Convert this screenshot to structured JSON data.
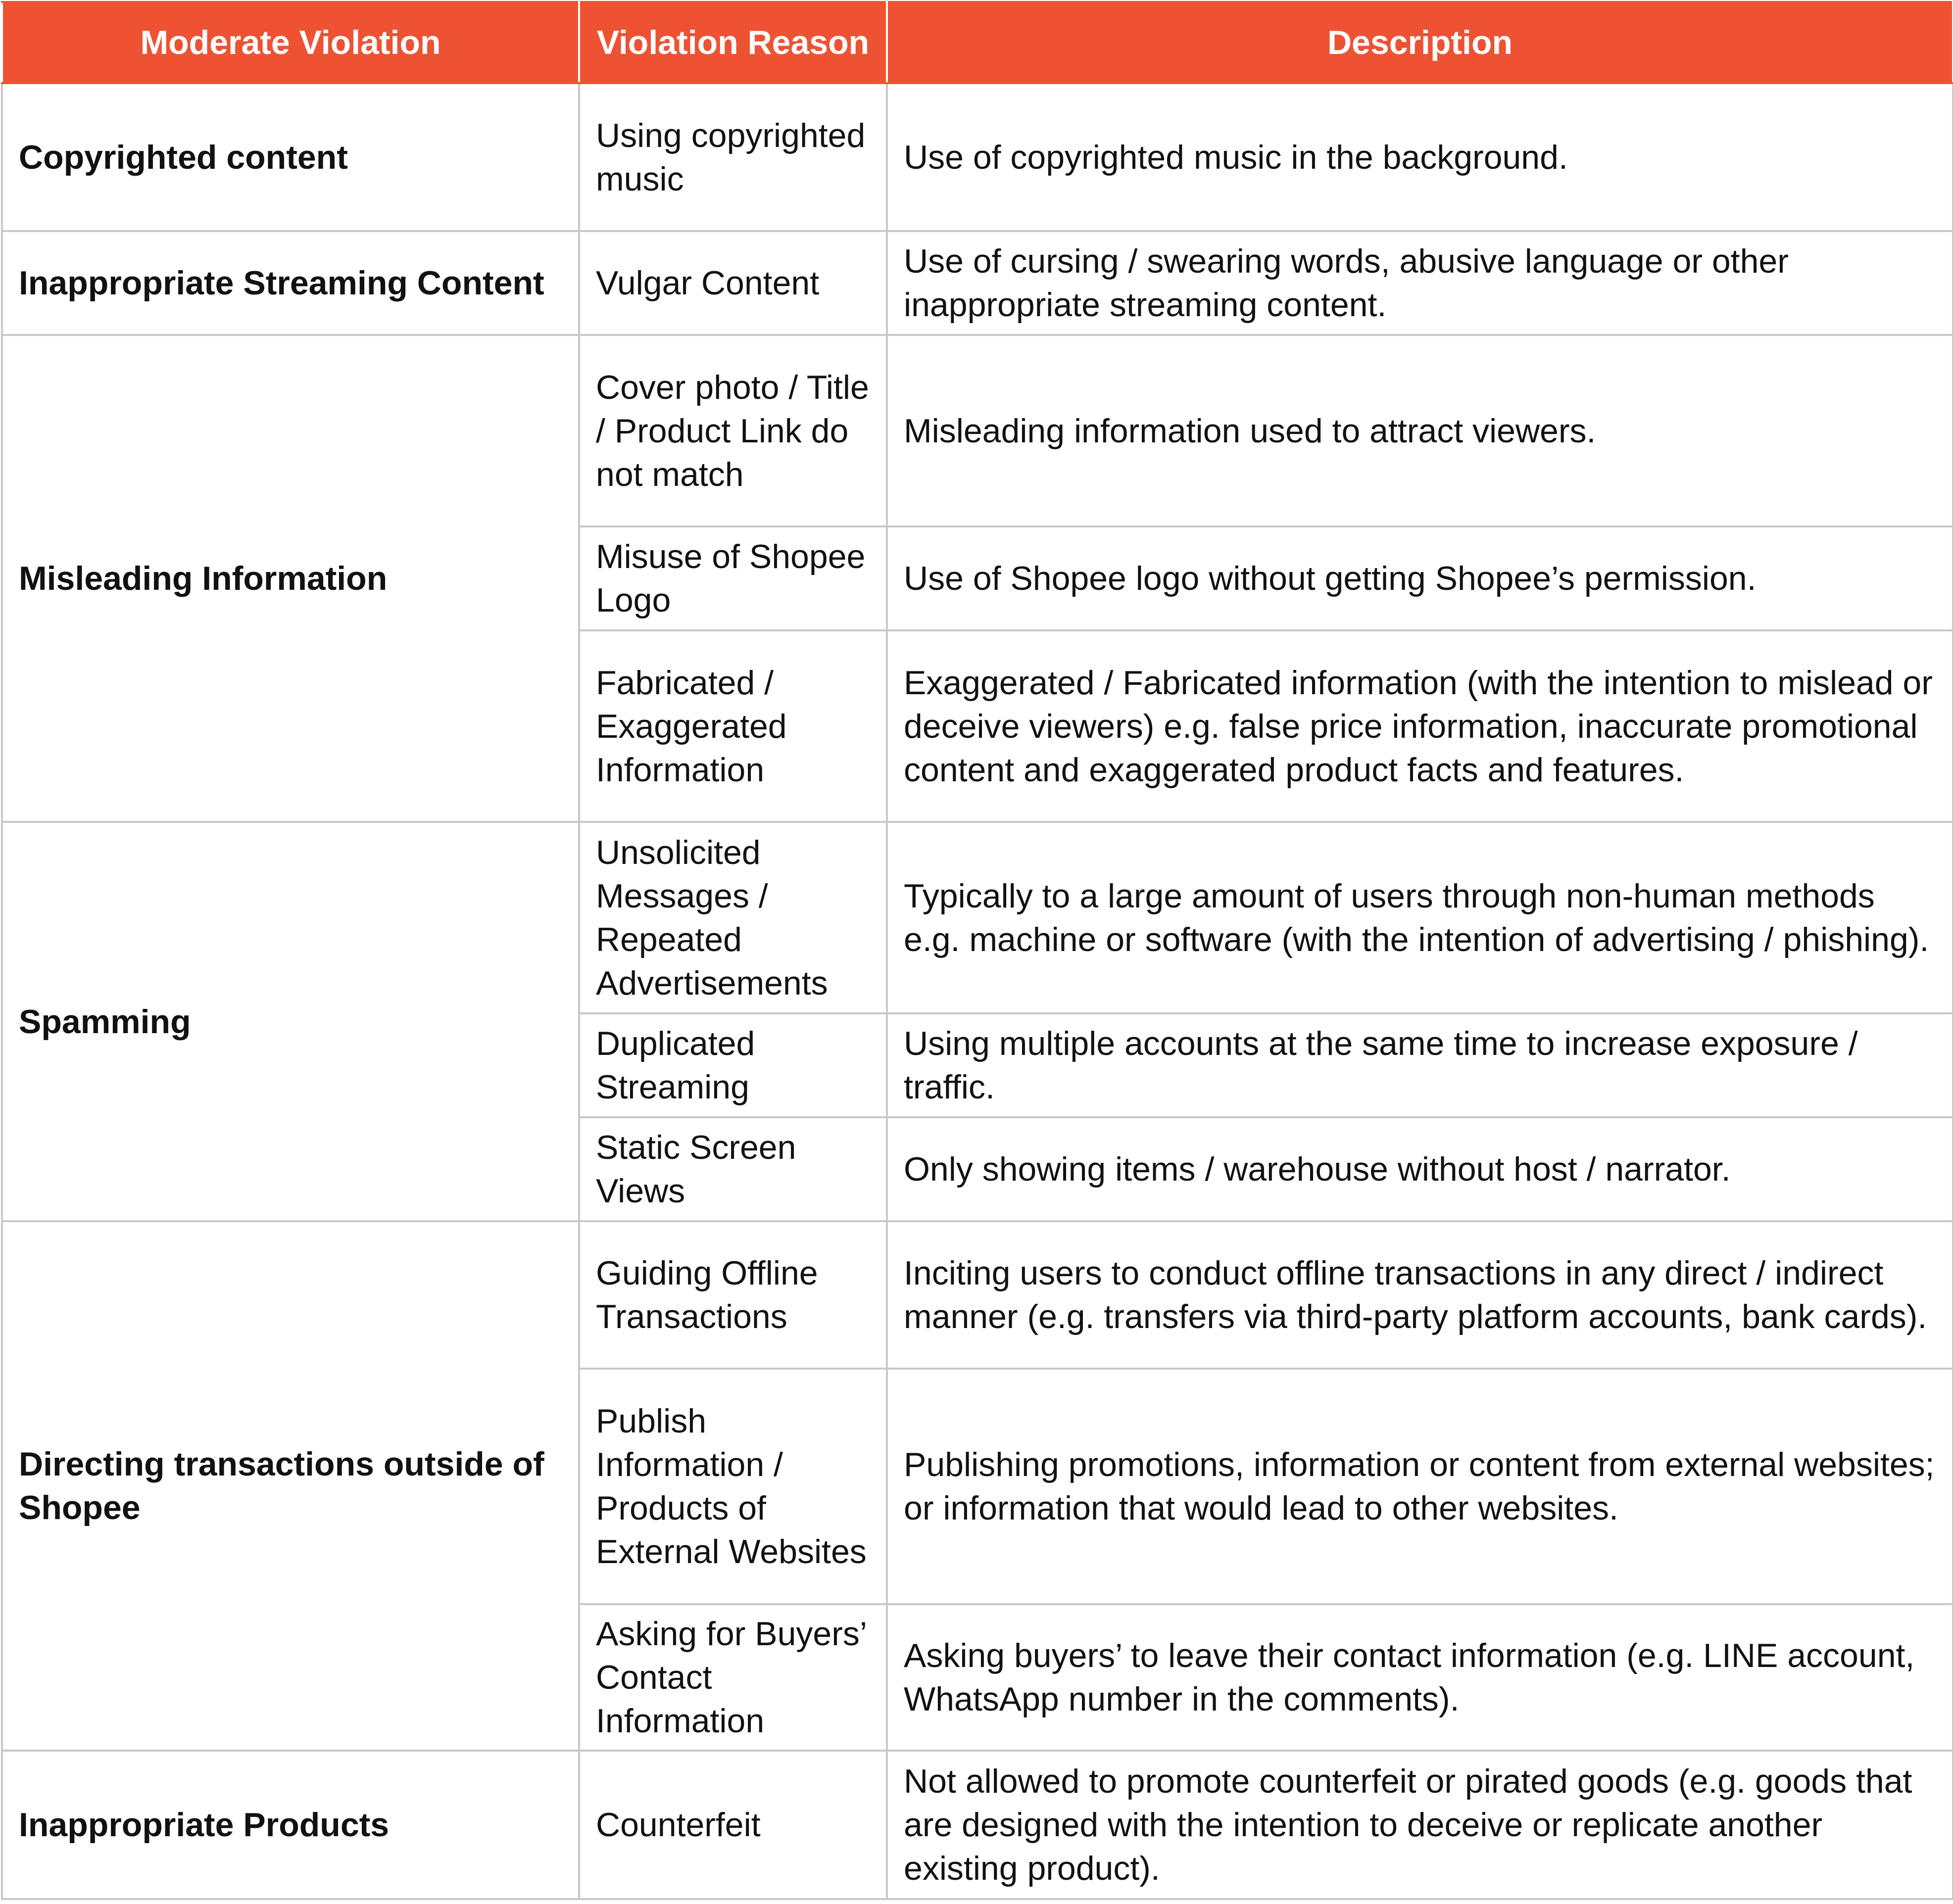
{
  "header_color": "#ee5233",
  "headers": [
    "Moderate Violation",
    "Violation Reason",
    "Description"
  ],
  "rows": [
    {
      "category": "Copyrighted content",
      "reason": "Using copyrighted music",
      "description": "Use of copyrighted music in the background."
    },
    {
      "category": "Inappropriate Streaming Content",
      "reason": "Vulgar Content",
      "description": "Use of cursing / swearing words, abusive language or other inappropriate streaming content."
    },
    {
      "category": "Misleading Information",
      "reason": "Cover photo / Title / Product Link do not match",
      "description": "Misleading information used to attract viewers."
    },
    {
      "reason": "Misuse of Shopee Logo",
      "description": "Use of Shopee logo without getting Shopee’s permission."
    },
    {
      "reason": "Fabricated / Exaggerated Information",
      "description": "Exaggerated / Fabricated information (with the intention to mislead or deceive viewers) e.g. false price information, inaccurate promotional content and exaggerated product facts and features."
    },
    {
      "category": "Spamming",
      "reason": "Unsolicited Messages / Repeated Advertisements",
      "description": "Typically to a large amount of users through non-human methods e.g. machine or software (with the intention of advertising / phishing)."
    },
    {
      "reason": "Duplicated Streaming",
      "description": "Using multiple accounts at the same time to increase exposure / traffic."
    },
    {
      "reason": "Static Screen Views",
      "description": "Only showing items / warehouse without host / narrator."
    },
    {
      "category": "Directing transactions outside of Shopee",
      "reason": "Guiding Offline Transactions",
      "description": "Inciting users to conduct offline transactions in any direct / indirect manner (e.g. transfers via third-party platform accounts, bank cards)."
    },
    {
      "reason": "Publish Information / Products of External Websites",
      "description": "Publishing promotions, information or content from external websites; or information that would lead to other websites."
    },
    {
      "reason": "Asking for Buyers’ Contact Information",
      "description": "Asking buyers’ to leave their contact information (e.g. LINE account, WhatsApp number in the comments)."
    },
    {
      "category": "Inappropriate Products",
      "reason": "Counterfeit",
      "description": "Not allowed to promote counterfeit or pirated goods (e.g. goods that are designed with the intention to deceive or replicate another existing product)."
    }
  ]
}
